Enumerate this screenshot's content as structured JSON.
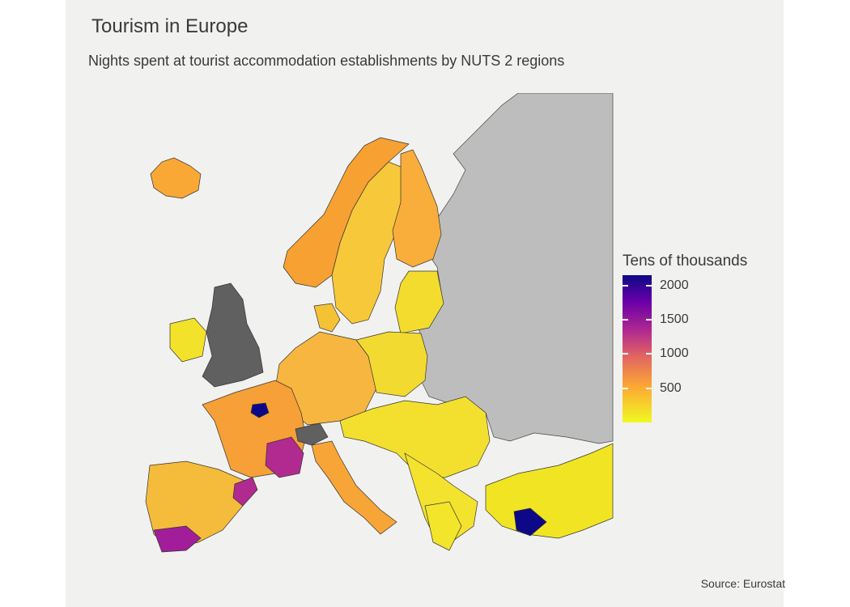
{
  "title": "Tourism in Europe",
  "subtitle": "Nights spent at tourist accommodation establishments by NUTS 2 regions",
  "caption": "Source: Eurostat",
  "legend": {
    "title": "Tens of thousands",
    "ticks": [
      "2000",
      "1500",
      "1000",
      "500"
    ],
    "scale_min": 0,
    "scale_max": 2150,
    "colors": [
      "#0d0887",
      "#6a00a8",
      "#b12a90",
      "#e16462",
      "#fca636",
      "#f0f921"
    ]
  },
  "map": {
    "no_data_color": "#606060",
    "outside_color": "#bdbdbd",
    "regions": [
      {
        "name": "Iceland",
        "level": "medium"
      },
      {
        "name": "Norway",
        "level": "medium"
      },
      {
        "name": "Sweden",
        "level": "low-medium"
      },
      {
        "name": "Finland",
        "level": "medium"
      },
      {
        "name": "United Kingdom",
        "level": "no-data"
      },
      {
        "name": "Ireland",
        "level": "low"
      },
      {
        "name": "France",
        "level": "medium"
      },
      {
        "name": "Île-de-France",
        "level": "highest"
      },
      {
        "name": "Provence",
        "level": "high"
      },
      {
        "name": "Cataluña",
        "level": "high"
      },
      {
        "name": "Andalucía",
        "level": "high"
      },
      {
        "name": "Antalya",
        "level": "highest"
      },
      {
        "name": "Switzerland",
        "level": "no-data"
      },
      {
        "name": "Germany",
        "level": "medium"
      },
      {
        "name": "Poland",
        "level": "low"
      },
      {
        "name": "Italy",
        "level": "medium"
      },
      {
        "name": "Turkey",
        "level": "low"
      },
      {
        "name": "Greece",
        "level": "low"
      }
    ]
  }
}
